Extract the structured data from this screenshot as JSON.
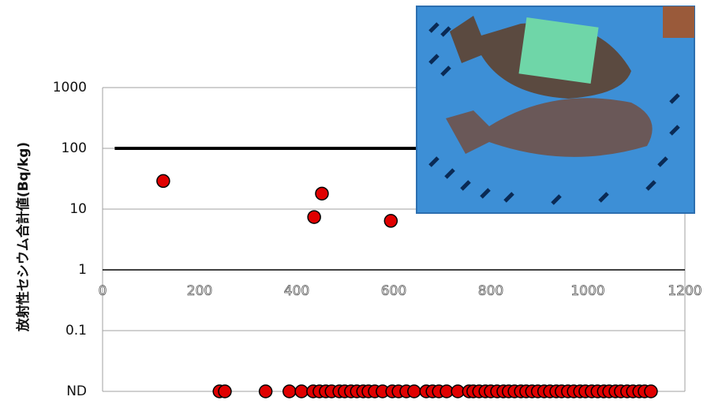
{
  "chart_data": {
    "type": "scatter",
    "y_label": "放射性セシウム合計値(Bq/kg)",
    "xlim": [
      0,
      1200
    ],
    "xticks": [
      0,
      200,
      400,
      600,
      800,
      1000,
      1200
    ],
    "ylim": [
      0.01,
      1000
    ],
    "log_y": true,
    "yticks": [
      1000,
      100,
      10,
      1,
      0.1,
      {
        "value": 0.01,
        "label": "ND"
      }
    ],
    "grid": true,
    "x_axis_crossing": 1,
    "reference_line": {
      "value": 100,
      "x": [
        25,
        1200
      ],
      "color": "#000000"
    },
    "series": [
      {
        "color": "#e00000",
        "x": [
          125,
          436,
          452,
          594
        ],
        "values": [
          29,
          7.4,
          18,
          6.4
        ]
      }
    ],
    "nd_points": {
      "color": "#e00000",
      "x": [
        241,
        252,
        336,
        385,
        410,
        434,
        447,
        460,
        472,
        488,
        499,
        512,
        524,
        537,
        548,
        561,
        577,
        597,
        610,
        626,
        642,
        667,
        680,
        693,
        709,
        732,
        755,
        764,
        776,
        789,
        800,
        813,
        826,
        837,
        849,
        862,
        873,
        885,
        897,
        910,
        922,
        935,
        946,
        959,
        971,
        984,
        995,
        1008,
        1020,
        1033,
        1044,
        1057,
        1068,
        1081,
        1093,
        1106,
        1117,
        1130
      ]
    }
  }
}
